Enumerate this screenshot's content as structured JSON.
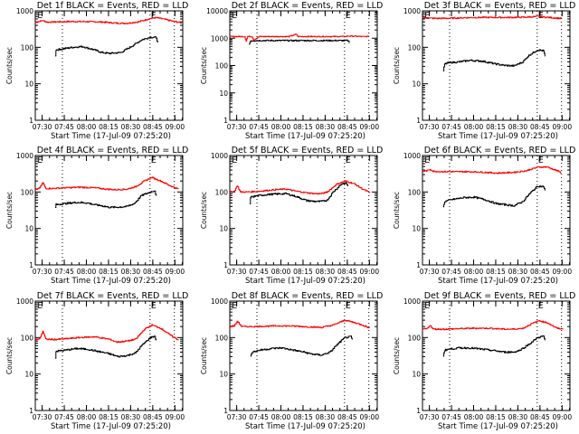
{
  "figure": {
    "start_time_label": "Start Time (17-Jul-09 07:25:20)",
    "colors": {
      "events": "#000000",
      "lld": "#ff0000",
      "axes": "#000000"
    }
  },
  "chart_data": [
    {
      "type": "line",
      "detector": "1f",
      "title": "Det 1f BLACK = Events, RED = LLD",
      "xlabel": "Start Time (17-Jul-09 07:25:20)",
      "ylabel": "Counts/sec",
      "yscale": "log",
      "ylim": [
        1,
        1000
      ],
      "yticks": [
        "1",
        "10",
        "100",
        "1000"
      ],
      "xticks": [
        "07:30",
        "07:45",
        "08:00",
        "08:15",
        "08:30",
        "08:45",
        "09:00"
      ],
      "x_unit": "minutes after 07:25:20",
      "xlim": [
        0,
        100
      ],
      "markers": {
        "dotted_lines_min": [
          18.4,
          77.8,
          94.3
        ],
        "E_marks_min": [
          2,
          79
        ]
      },
      "series": [
        {
          "name": "LLD",
          "color": "red",
          "x": [
            0,
            3,
            5,
            8,
            15,
            25,
            35,
            45,
            55,
            62,
            70,
            78,
            82,
            88,
            94,
            99
          ],
          "y": [
            480,
            520,
            540,
            490,
            500,
            510,
            505,
            495,
            460,
            455,
            500,
            620,
            650,
            580,
            510,
            470
          ]
        },
        {
          "name": "Events",
          "color": "black",
          "x": [
            13.5,
            14,
            18,
            25,
            32,
            40,
            45,
            50,
            58,
            65,
            72,
            78,
            82,
            83
          ],
          "y": [
            60,
            85,
            90,
            100,
            105,
            85,
            72,
            68,
            72,
            105,
            160,
            190,
            185,
            130
          ]
        }
      ]
    },
    {
      "type": "line",
      "detector": "2f",
      "title": "Det 2f BLACK = Events, RED = LLD",
      "xlabel": "Start Time (17-Jul-09 07:25:20)",
      "ylabel": "Counts/sec",
      "yscale": "log",
      "ylim": [
        1,
        10000
      ],
      "yticks": [
        "1",
        "10",
        "100",
        "1000",
        "10000"
      ],
      "xticks": [
        "07:30",
        "07:45",
        "08:00",
        "08:15",
        "08:30",
        "08:45",
        "09:00"
      ],
      "x_unit": "minutes after 07:25:20",
      "xlim": [
        0,
        100
      ],
      "markers": {
        "dotted_lines_min": [
          18.4,
          77.8,
          94.3
        ],
        "E_marks_min": [
          2,
          79
        ]
      },
      "series": [
        {
          "name": "LLD",
          "color": "red",
          "x": [
            0,
            10,
            11,
            12,
            15,
            16,
            20,
            40,
            45,
            46,
            50,
            60,
            78,
            80,
            90,
            94
          ],
          "y": [
            1150,
            1150,
            800,
            1150,
            1150,
            850,
            1150,
            1150,
            1400,
            1150,
            1150,
            1150,
            1150,
            1200,
            1150,
            1150
          ]
        },
        {
          "name": "Events",
          "color": "black",
          "x": [
            13,
            14,
            20,
            40,
            45,
            50,
            60,
            75,
            80,
            81
          ],
          "y": [
            600,
            800,
            820,
            820,
            820,
            820,
            820,
            820,
            820,
            700
          ]
        }
      ]
    },
    {
      "type": "line",
      "detector": "3f",
      "title": "Det 3f BLACK = Events, RED = LLD",
      "xlabel": "Start Time (17-Jul-09 07:25:20)",
      "ylabel": "Counts/sec",
      "yscale": "log",
      "ylim": [
        1,
        1000
      ],
      "yticks": [
        "1",
        "10",
        "100",
        "1000"
      ],
      "xticks": [
        "07:30",
        "07:45",
        "08:00",
        "08:15",
        "08:30",
        "08:45",
        "09:00"
      ],
      "x_unit": "minutes after 07:25:20",
      "xlim": [
        0,
        100
      ],
      "markers": {
        "dotted_lines_min": [
          18.4,
          77.8,
          94.3
        ],
        "E_marks_min": [
          2,
          79
        ]
      },
      "series": [
        {
          "name": "LLD",
          "color": "red",
          "x": [
            0,
            10,
            20,
            30,
            40,
            50,
            60,
            70,
            78,
            85,
            94
          ],
          "y": [
            640,
            620,
            630,
            650,
            660,
            660,
            660,
            670,
            700,
            660,
            620
          ]
        },
        {
          "name": "Events",
          "color": "black",
          "x": [
            14,
            15,
            18,
            25,
            32,
            40,
            48,
            55,
            62,
            68,
            72,
            78,
            82,
            83
          ],
          "y": [
            22,
            35,
            38,
            40,
            44,
            42,
            36,
            32,
            31,
            40,
            60,
            85,
            80,
            55
          ]
        }
      ]
    },
    {
      "type": "line",
      "detector": "4f",
      "title": "Det 4f BLACK = Events, RED = LLD",
      "xlabel": "Start Time (17-Jul-09 07:25:20)",
      "ylabel": "Counts/sec",
      "yscale": "log",
      "ylim": [
        1,
        1000
      ],
      "yticks": [
        "1",
        "10",
        "100",
        "1000"
      ],
      "xticks": [
        "07:30",
        "07:45",
        "08:00",
        "08:15",
        "08:30",
        "08:45",
        "09:00"
      ],
      "x_unit": "minutes after 07:25:20",
      "xlim": [
        0,
        100
      ],
      "markers": {
        "dotted_lines_min": [
          18.4,
          77.8,
          94.3
        ],
        "E_marks_min": [
          2,
          79
        ]
      },
      "series": [
        {
          "name": "LLD",
          "color": "red",
          "x": [
            0,
            3,
            5,
            7,
            12,
            20,
            30,
            40,
            48,
            55,
            62,
            68,
            74,
            79,
            85,
            91,
            97
          ],
          "y": [
            115,
            130,
            180,
            125,
            125,
            130,
            135,
            130,
            120,
            115,
            120,
            140,
            200,
            250,
            200,
            150,
            120
          ]
        },
        {
          "name": "Events",
          "color": "black",
          "x": [
            13.5,
            14,
            20,
            28,
            35,
            40,
            45,
            50,
            55,
            62,
            67,
            72,
            78,
            81,
            82
          ],
          "y": [
            38,
            45,
            48,
            52,
            50,
            45,
            42,
            38,
            38,
            40,
            48,
            80,
            100,
            110,
            75
          ]
        }
      ]
    },
    {
      "type": "line",
      "detector": "5f",
      "title": "Det 5f BLACK = Events, RED = LLD",
      "xlabel": "Start Time (17-Jul-09 07:25:20)",
      "ylabel": "Counts/sec",
      "yscale": "log",
      "ylim": [
        1,
        1000
      ],
      "yticks": [
        "1",
        "10",
        "100",
        "1000"
      ],
      "xticks": [
        "07:30",
        "07:45",
        "08:00",
        "08:15",
        "08:30",
        "08:45",
        "09:00"
      ],
      "x_unit": "minutes after 07:25:20",
      "xlim": [
        0,
        100
      ],
      "markers": {
        "dotted_lines_min": [
          18.4,
          77.8,
          94.3
        ],
        "E_marks_min": [
          2,
          79
        ]
      },
      "series": [
        {
          "name": "LLD",
          "color": "red",
          "x": [
            0,
            3,
            5,
            7,
            12,
            20,
            30,
            38,
            45,
            52,
            58,
            62,
            66,
            72,
            78,
            84,
            90,
            95
          ],
          "y": [
            100,
            105,
            150,
            100,
            100,
            105,
            115,
            120,
            105,
            95,
            90,
            90,
            100,
            160,
            200,
            170,
            120,
            95
          ]
        },
        {
          "name": "Events",
          "color": "black",
          "x": [
            13.5,
            14,
            18,
            25,
            32,
            38,
            45,
            52,
            58,
            62,
            66,
            70,
            76,
            79,
            80
          ],
          "y": [
            45,
            72,
            78,
            85,
            88,
            90,
            75,
            58,
            55,
            55,
            60,
            100,
            170,
            175,
            140
          ]
        }
      ]
    },
    {
      "type": "line",
      "detector": "6f",
      "title": "Det 6f BLACK = Events, RED = LLD",
      "xlabel": "Start Time (17-Jul-09 07:25:20)",
      "ylabel": "Counts/sec",
      "yscale": "log",
      "ylim": [
        1,
        1000
      ],
      "yticks": [
        "1",
        "10",
        "100",
        "1000"
      ],
      "xticks": [
        "07:30",
        "07:45",
        "08:00",
        "08:15",
        "08:30",
        "08:45",
        "09:00"
      ],
      "x_unit": "minutes after 07:25:20",
      "xlim": [
        0,
        100
      ],
      "markers": {
        "dotted_lines_min": [
          18.4,
          77.8,
          94.3
        ],
        "E_marks_min": [
          2,
          79
        ]
      },
      "series": [
        {
          "name": "LLD",
          "color": "red",
          "x": [
            0,
            3,
            5,
            7,
            15,
            30,
            40,
            50,
            60,
            70,
            78,
            84,
            90,
            94
          ],
          "y": [
            370,
            380,
            420,
            370,
            360,
            360,
            350,
            330,
            340,
            380,
            480,
            490,
            400,
            340
          ]
        },
        {
          "name": "Events",
          "color": "black",
          "x": [
            14,
            15,
            20,
            28,
            35,
            42,
            50,
            56,
            62,
            68,
            72,
            78,
            82,
            83
          ],
          "y": [
            38,
            55,
            62,
            70,
            72,
            62,
            48,
            45,
            42,
            55,
            85,
            145,
            140,
            110
          ]
        }
      ]
    },
    {
      "type": "line",
      "detector": "7f",
      "title": "Det 7f BLACK = Events, RED = LLD",
      "xlabel": "Start Time (17-Jul-09 07:25:20)",
      "ylabel": "Counts/sec",
      "yscale": "log",
      "ylim": [
        1,
        1000
      ],
      "yticks": [
        "1",
        "10",
        "100",
        "1000"
      ],
      "xticks": [
        "07:30",
        "07:45",
        "08:00",
        "08:15",
        "08:30",
        "08:45",
        "09:00"
      ],
      "x_unit": "minutes after 07:25:20",
      "xlim": [
        0,
        100
      ],
      "markers": {
        "dotted_lines_min": [
          18.4,
          77.8,
          94.3
        ],
        "E_marks_min": [
          2,
          79
        ]
      },
      "series": [
        {
          "name": "LLD",
          "color": "red",
          "x": [
            0,
            3,
            5,
            7,
            12,
            20,
            30,
            40,
            50,
            55,
            62,
            68,
            74,
            79,
            85,
            91,
            97
          ],
          "y": [
            85,
            95,
            150,
            90,
            88,
            92,
            100,
            105,
            90,
            75,
            80,
            90,
            170,
            220,
            180,
            120,
            85
          ]
        },
        {
          "name": "Events",
          "color": "black",
          "x": [
            13.5,
            14,
            20,
            28,
            35,
            42,
            50,
            56,
            62,
            68,
            72,
            78,
            81,
            82
          ],
          "y": [
            28,
            42,
            45,
            50,
            48,
            42,
            36,
            30,
            32,
            38,
            60,
            100,
            110,
            80
          ]
        }
      ]
    },
    {
      "type": "line",
      "detector": "8f",
      "title": "Det 8f BLACK = Events, RED = LLD",
      "xlabel": "Start Time (17-Jul-09 07:25:20)",
      "ylabel": "Counts/sec",
      "yscale": "log",
      "ylim": [
        1,
        1000
      ],
      "yticks": [
        "1",
        "10",
        "100",
        "1000"
      ],
      "xticks": [
        "07:30",
        "07:45",
        "08:00",
        "08:15",
        "08:30",
        "08:45",
        "09:00"
      ],
      "x_unit": "minutes after 07:25:20",
      "xlim": [
        0,
        100
      ],
      "markers": {
        "dotted_lines_min": [
          18.4,
          77.8,
          94.3
        ],
        "E_marks_min": [
          2,
          79
        ]
      },
      "series": [
        {
          "name": "LLD",
          "color": "red",
          "x": [
            0,
            3,
            5,
            8,
            15,
            25,
            35,
            45,
            55,
            62,
            70,
            78,
            84,
            90,
            95
          ],
          "y": [
            200,
            210,
            280,
            200,
            200,
            205,
            210,
            205,
            195,
            190,
            220,
            300,
            260,
            220,
            180
          ]
        },
        {
          "name": "Events",
          "color": "black",
          "x": [
            14,
            15,
            20,
            28,
            35,
            42,
            50,
            56,
            62,
            68,
            72,
            78,
            82,
            83
          ],
          "y": [
            32,
            40,
            45,
            50,
            52,
            46,
            40,
            35,
            33,
            40,
            60,
            100,
            105,
            85
          ]
        }
      ]
    },
    {
      "type": "line",
      "detector": "9f",
      "title": "Det 9f BLACK = Events, RED = LLD",
      "xlabel": "Start Time (17-Jul-09 07:25:20)",
      "ylabel": "Counts/sec",
      "yscale": "log",
      "ylim": [
        1,
        1000
      ],
      "yticks": [
        "1",
        "10",
        "100",
        "1000"
      ],
      "xticks": [
        "07:30",
        "07:45",
        "08:00",
        "08:15",
        "08:30",
        "08:45",
        "09:00"
      ],
      "x_unit": "minutes after 07:25:20",
      "xlim": [
        0,
        100
      ],
      "markers": {
        "dotted_lines_min": [
          18.4,
          77.8,
          94.3
        ],
        "E_marks_min": [
          2,
          79
        ]
      },
      "series": [
        {
          "name": "LLD",
          "color": "red",
          "x": [
            0,
            3,
            5,
            7,
            15,
            25,
            35,
            45,
            55,
            62,
            68,
            74,
            79,
            85,
            91,
            95
          ],
          "y": [
            170,
            175,
            220,
            170,
            170,
            175,
            180,
            180,
            170,
            170,
            180,
            240,
            290,
            250,
            180,
            170
          ]
        },
        {
          "name": "Events",
          "color": "black",
          "x": [
            14,
            15,
            18,
            25,
            32,
            40,
            48,
            55,
            62,
            66,
            72,
            78,
            82,
            83
          ],
          "y": [
            32,
            45,
            48,
            52,
            52,
            48,
            44,
            40,
            40,
            45,
            65,
            100,
            110,
            80
          ]
        }
      ]
    }
  ]
}
